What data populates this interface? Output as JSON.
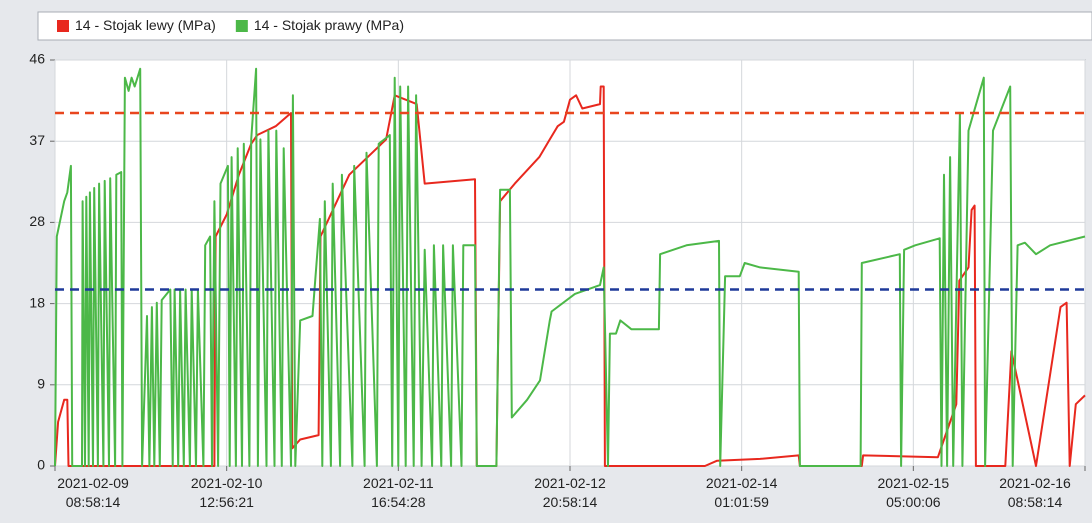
{
  "chart_data": {
    "type": "line",
    "xlim": [
      0,
      168
    ],
    "xticks": [
      {
        "value": 0,
        "label": "2021-02-09\n08:58:14"
      },
      {
        "value": 28,
        "label": "2021-02-10\n12:56:21"
      },
      {
        "value": 56,
        "label": "2021-02-11\n16:54:28"
      },
      {
        "value": 84,
        "label": "2021-02-12\n20:58:14"
      },
      {
        "value": 112,
        "label": "2021-02-14\n01:01:59"
      },
      {
        "value": 140,
        "label": "2021-02-15\n05:00:06"
      },
      {
        "value": 168,
        "label": "2021-02-16\n08:58:14"
      }
    ],
    "ylim": [
      0,
      46
    ],
    "yticks": [
      0,
      {
        "value": 9.2,
        "label": "9"
      },
      {
        "value": 18.4,
        "label": "18"
      },
      {
        "value": 27.6,
        "label": "28"
      },
      {
        "value": 36.8,
        "label": "37"
      },
      46
    ],
    "grid": true,
    "legend": "top",
    "reference_lines": [
      {
        "value": 40,
        "color": "#e8461e"
      },
      {
        "value": 20,
        "color": "#1f3a9a"
      }
    ],
    "series": [
      {
        "name": "14 - Stojak lewy (MPa)",
        "color": "#e8281e",
        "x": [
          0,
          0.5,
          1.5,
          2.0,
          2.2,
          26.0,
          26.2,
          28,
          30,
          32,
          33,
          36,
          38.5,
          38.7,
          40,
          43,
          43.3,
          48,
          54,
          55.4,
          59,
          60.3,
          68.5,
          68.8,
          72,
          72.6,
          75,
          79,
          80.7,
          82,
          83,
          84,
          85,
          86,
          88.9,
          89,
          89.5,
          89.7,
          106,
          108,
          115,
          121.3,
          121.5,
          131.6,
          131.8,
          144,
          145,
          147,
          147.5,
          149,
          149.5,
          150,
          150.2,
          155,
          156,
          160,
          164,
          165,
          165.5,
          166.5,
          168
        ],
        "values": [
          0,
          5,
          7.5,
          7.5,
          0,
          0,
          26,
          28.5,
          33,
          36.5,
          37.5,
          38.5,
          40,
          2,
          3,
          3.5,
          26,
          33,
          37,
          42,
          41,
          32,
          32.5,
          0,
          0,
          30,
          32,
          35,
          37,
          38.5,
          39,
          41.5,
          42,
          40.5,
          41,
          43,
          43,
          0,
          0,
          0.6,
          0.8,
          1.2,
          0,
          0,
          1.2,
          1.0,
          3,
          7,
          21,
          22.5,
          29,
          29.5,
          0,
          0,
          13,
          0,
          18,
          18.5,
          0,
          7,
          8
        ]
      },
      {
        "name": "14 - Stojak prawy (MPa)",
        "color": "#4cb848",
        "x": [
          0,
          0.3,
          1.5,
          2.0,
          2.6,
          2.8,
          4.4,
          4.5,
          4.9,
          5.1,
          5.5,
          5.7,
          6.2,
          6.4,
          7.0,
          7.2,
          7.9,
          8.1,
          8.8,
          9.0,
          9.8,
          10.0,
          10.8,
          11.0,
          11.4,
          12.0,
          12.5,
          13.0,
          13.9,
          14.2,
          15.0,
          15.4,
          15.8,
          16.2,
          16.6,
          17.1,
          17.4,
          18.8,
          19.2,
          19.5,
          20.1,
          20.4,
          21.0,
          21.3,
          22.0,
          22.3,
          23.0,
          23.3,
          24.2,
          24.5,
          25.3,
          25.6,
          26.0,
          26.6,
          27.0,
          28.2,
          28.5,
          28.8,
          29.5,
          29.8,
          30.5,
          30.8,
          31.7,
          32.0,
          32.8,
          33.1,
          33.5,
          34.5,
          34.8,
          35.8,
          36.1,
          37.0,
          37.3,
          38.5,
          38.8,
          39.2,
          40.0,
          42.0,
          43.2,
          43.6,
          44.0,
          45.0,
          45.3,
          46.5,
          46.8,
          48.5,
          48.8,
          50.5,
          50.8,
          52.5,
          52.8,
          54.6,
          55.0,
          55.4,
          56.0,
          56.3,
          57.2,
          57.6,
          58.5,
          58.9,
          59.8,
          60.3,
          61.5,
          61.8,
          63.0,
          63.3,
          64.6,
          64.9,
          66.3,
          66.6,
          68.5,
          68.8,
          72.0,
          72.6,
          74.2,
          74.5,
          77,
          79.1,
          80.7,
          81.0,
          84.8,
          88.9,
          89.5,
          90.2,
          90.5,
          91.5,
          92.2,
          94,
          96,
          98.5,
          98.7,
          103,
          108.3,
          108.5,
          109.3,
          111.7,
          112.5,
          115,
          121.3,
          121.5,
          131.4,
          131.6,
          137.8,
          138.0,
          138.5,
          140.3,
          144.3,
          144.6,
          145,
          145.5,
          146,
          146.5,
          147.6,
          148,
          149,
          151.5,
          151.7,
          153,
          155.8,
          156.2,
          157,
          158.2,
          160,
          162.3,
          168
        ],
        "values": [
          0,
          26,
          30,
          31,
          34,
          0,
          0,
          30,
          0,
          30.5,
          0,
          31,
          0,
          31.5,
          0,
          32,
          0,
          32.3,
          0,
          32.6,
          0,
          33,
          33.3,
          0,
          44,
          42.5,
          44,
          43,
          45,
          0,
          17,
          0,
          18,
          0,
          18.5,
          0,
          18.8,
          20,
          0,
          20,
          0,
          20,
          0,
          20,
          0,
          20,
          0,
          20,
          0,
          25,
          26,
          0,
          30,
          0,
          32,
          34,
          0,
          35,
          0,
          36,
          0,
          36.5,
          0,
          37,
          45,
          0,
          37,
          0,
          38,
          0,
          38,
          0,
          36,
          0,
          42,
          0,
          16.5,
          17,
          28,
          0,
          30,
          0,
          32,
          0,
          33,
          0,
          34,
          0,
          35.5,
          0,
          36.5,
          37.5,
          0,
          44,
          0,
          43,
          0,
          43,
          0,
          42,
          0,
          24.5,
          0,
          25,
          0,
          25,
          0,
          25,
          0,
          25,
          25,
          0,
          0,
          31.3,
          31.3,
          5.5,
          7.5,
          9.7,
          16.5,
          17.5,
          19.5,
          20.5,
          22.5,
          0,
          15,
          15,
          16.5,
          15.5,
          15.5,
          15.5,
          24,
          25,
          25.5,
          0,
          21.5,
          21.5,
          23,
          22.5,
          22,
          0,
          0,
          23,
          24,
          0,
          24.5,
          25,
          25.8,
          0,
          33,
          0,
          35,
          0,
          40,
          0,
          38,
          44,
          0,
          38,
          43,
          0,
          25,
          25.3,
          24,
          25,
          26
        ]
      }
    ]
  }
}
